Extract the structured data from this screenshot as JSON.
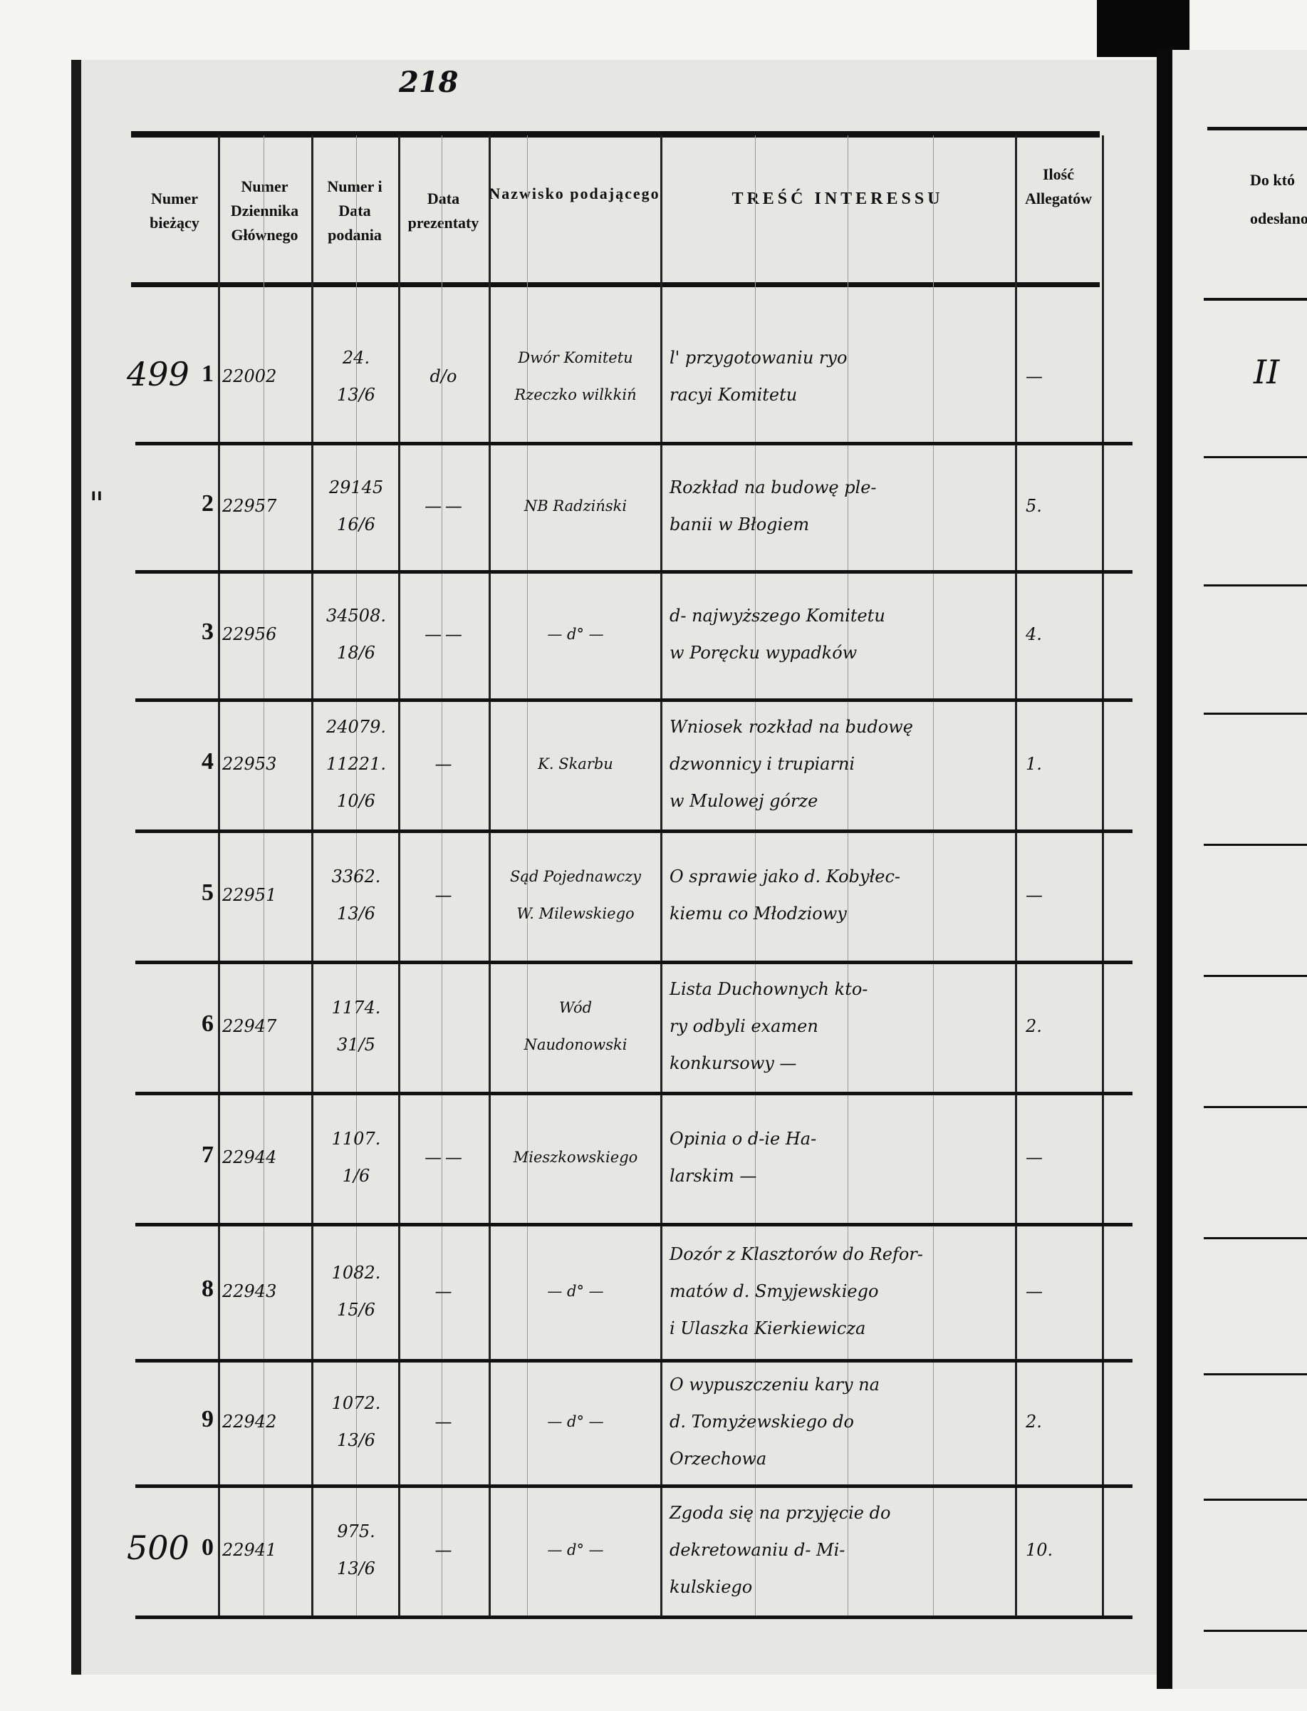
{
  "folio": "218",
  "headers": {
    "numer_biezacy": "Numer bieżący",
    "numer_dziennika": "Numer Dziennika Głównego",
    "numer_data": "Numer i Data podania",
    "data_prezentaty": "Data prezentaty",
    "nazwisko": "Nazwisko podającego",
    "tresc": "TREŚĆ INTERESSU",
    "allegaty": "Ilość Allegatów"
  },
  "right_page": {
    "header_line1": "Do któ",
    "header_line2": "odesłano S",
    "entry": "II"
  },
  "rows": [
    {
      "margin": "499",
      "num": "1",
      "journal": "22002",
      "num_date": [
        "24.",
        "13/6"
      ],
      "presentation": "d/o",
      "name": [
        "Dwór Komitetu",
        "Rzeczko wilkkiń"
      ],
      "content": [
        "l' przygotowaniu ryo",
        "racyi Komitetu"
      ],
      "allegaty": "—"
    },
    {
      "margin": "\"",
      "num": "2",
      "journal": "22957",
      "num_date": [
        "29145",
        "16/6"
      ],
      "presentation": "— —",
      "name": [
        "NB Radziński"
      ],
      "content": [
        "Rozkład na budowę ple-",
        "banii w Błogiem"
      ],
      "allegaty": "5."
    },
    {
      "margin": "",
      "num": "3",
      "journal": "22956",
      "num_date": [
        "34508.",
        "18/6"
      ],
      "presentation": "— —",
      "name": [
        "— d° —"
      ],
      "content": [
        "d- najwyższego Komitetu",
        "w Poręcku wypadków"
      ],
      "allegaty": "4."
    },
    {
      "margin": "",
      "num": "4",
      "journal": "22953",
      "num_date": [
        "24079.",
        "11221.",
        "10/6"
      ],
      "presentation": "—",
      "name": [
        "K. Skarbu"
      ],
      "content": [
        "Wniosek rozkład na budowę",
        "dzwonnicy i trupiarni",
        "w Mulowej górze"
      ],
      "allegaty": "1."
    },
    {
      "margin": "",
      "num": "5",
      "journal": "22951",
      "num_date": [
        "3362.",
        "13/6"
      ],
      "presentation": "—",
      "name": [
        "Sąd Pojednawczy",
        "W. Milewskiego"
      ],
      "content": [
        "O sprawie jako d. Kobyłec-",
        "kiemu co Młodziowy"
      ],
      "allegaty": "—"
    },
    {
      "margin": "",
      "num": "6",
      "journal": "22947",
      "num_date": [
        "1174.",
        "31/5"
      ],
      "presentation": "",
      "name": [
        "Wód",
        "Naudonowski"
      ],
      "content": [
        "Lista Duchownych kto-",
        "ry odbyli examen",
        "konkursowy —"
      ],
      "allegaty": "2."
    },
    {
      "margin": "",
      "num": "7",
      "journal": "22944",
      "num_date": [
        "1107.",
        "1/6"
      ],
      "presentation": "— —",
      "name": [
        "Mieszkowskiego"
      ],
      "content": [
        "Opinia o d-ie Ha-",
        "larskim —"
      ],
      "allegaty": "—"
    },
    {
      "margin": "",
      "num": "8",
      "journal": "22943",
      "num_date": [
        "1082.",
        "15/6"
      ],
      "presentation": "—",
      "name": [
        "— d° —"
      ],
      "content": [
        "Dozór z Klasztorów do Refor-",
        "matów d. Smyjewskiego",
        "i Ulaszka Kierkiewicza"
      ],
      "allegaty": "—"
    },
    {
      "margin": "",
      "num": "9",
      "journal": "22942",
      "num_date": [
        "1072.",
        "13/6"
      ],
      "presentation": "—",
      "name": [
        "— d° —"
      ],
      "content": [
        "O wypuszczeniu kary na",
        "d. Tomyżewskiego do",
        "Orzechowa"
      ],
      "allegaty": "2."
    },
    {
      "margin": "500",
      "num": "0",
      "journal": "22941",
      "num_date": [
        "975.",
        "13/6"
      ],
      "presentation": "—",
      "name": [
        "— d° —"
      ],
      "content": [
        "Zgoda się na przyjęcie do",
        "dekretowaniu d- Mi-",
        "kulskiego"
      ],
      "allegaty": "10."
    }
  ]
}
